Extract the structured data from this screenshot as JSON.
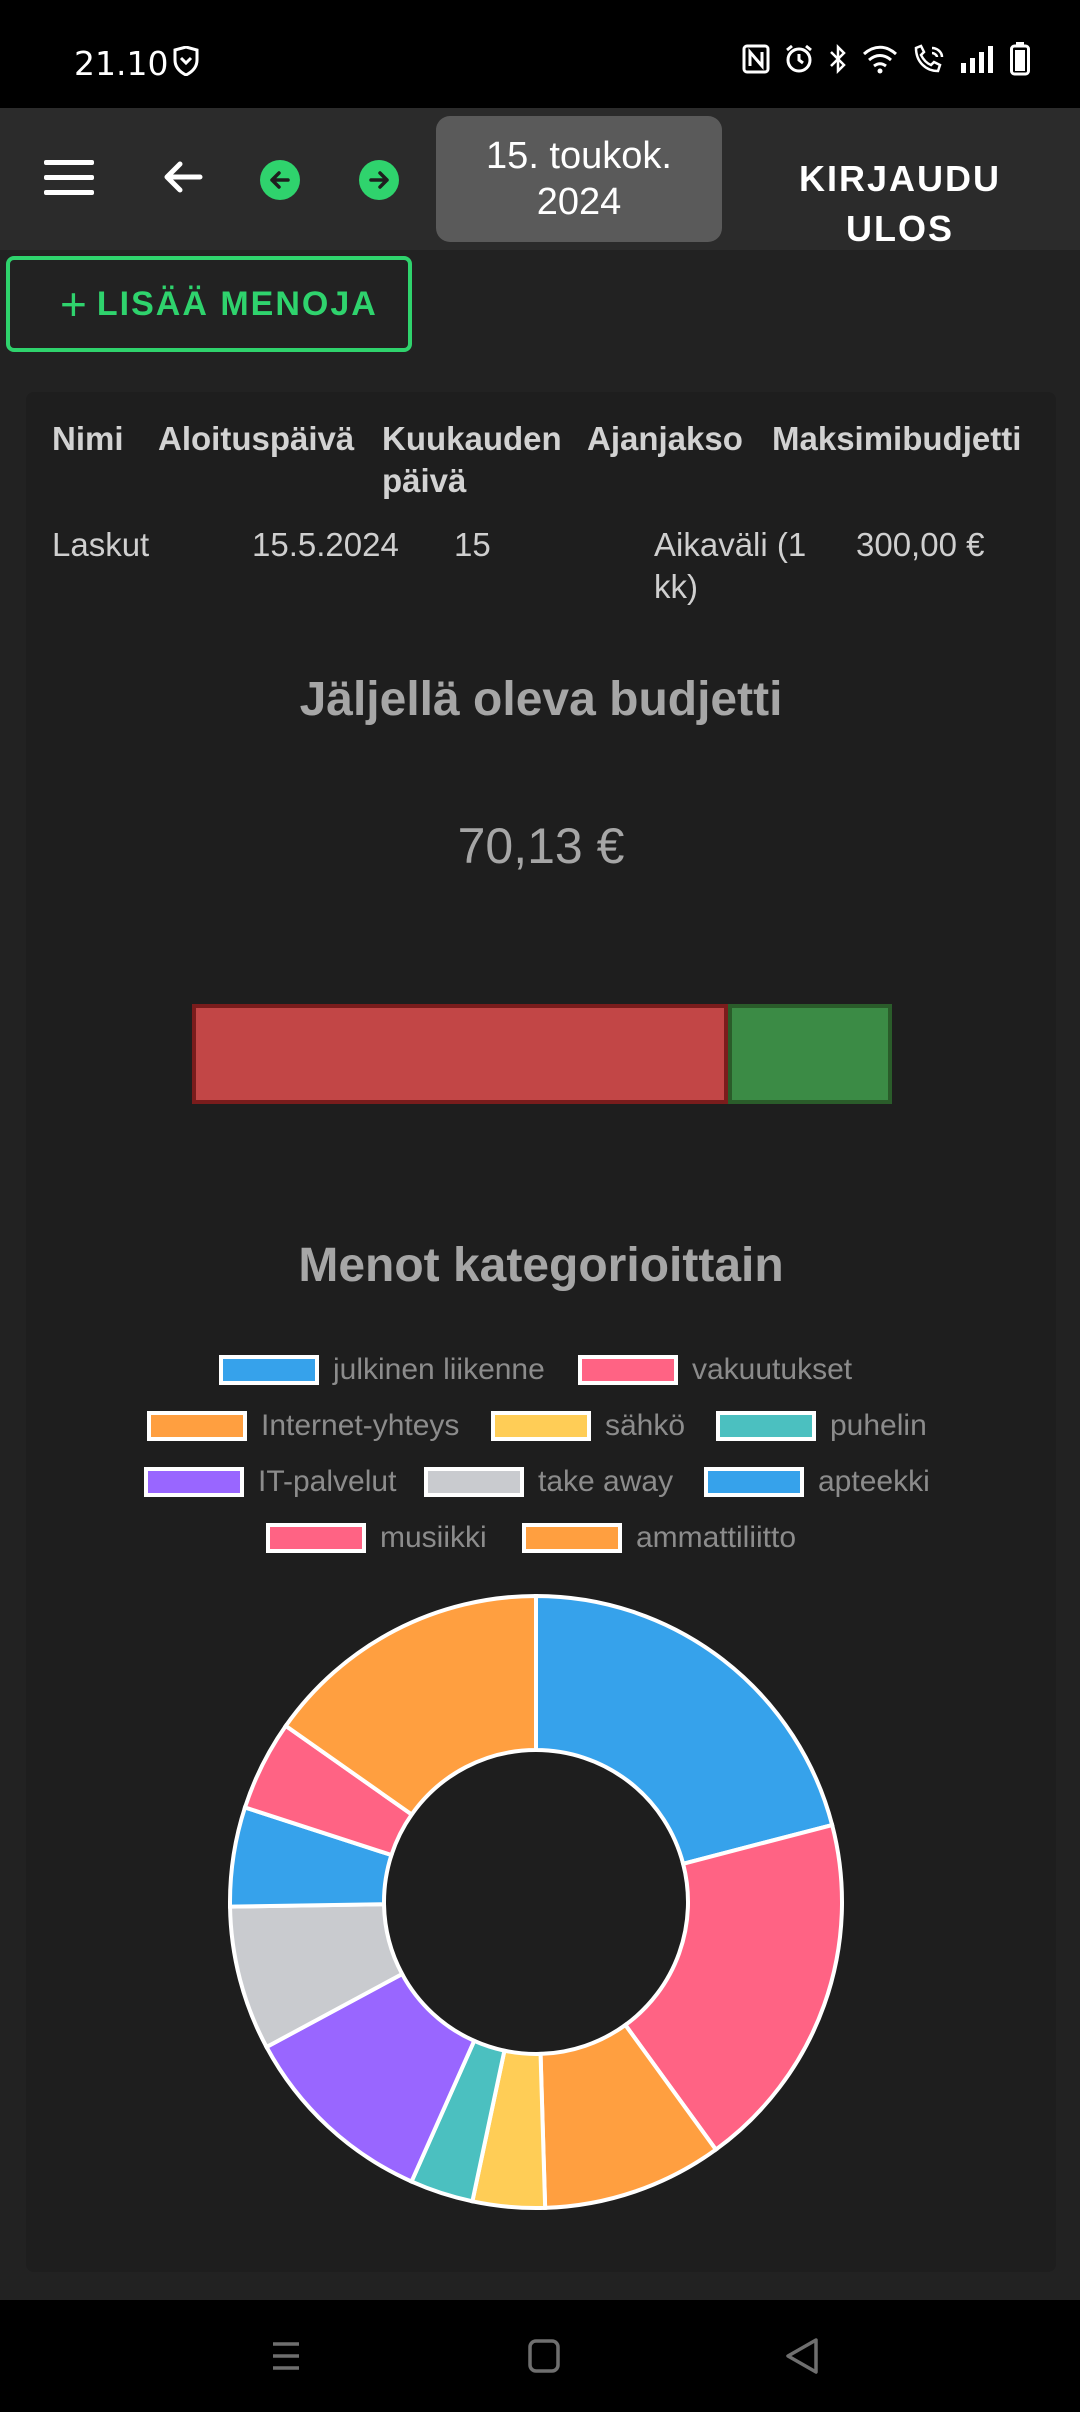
{
  "status_bar": {
    "time": "21.10",
    "icons": [
      "shield-icon",
      "nfc-icon",
      "alarm-icon",
      "bluetooth-icon",
      "wifi-icon",
      "wifi-call-icon",
      "signal-icon",
      "battery-icon"
    ]
  },
  "app_bar": {
    "menu_icon": "hamburger-icon",
    "back_icon": "arrow-left-icon",
    "prev_icon": "arrow-left-circle-icon",
    "next_icon": "arrow-right-circle-icon",
    "date_line1": "15. toukok.",
    "date_line2": "2024",
    "logout_label": "KIRJAUDU ULOS"
  },
  "add_button": {
    "icon": "plus-icon",
    "label": "LISÄÄ MENOJA"
  },
  "table": {
    "headers": [
      "Nimi",
      "Aloituspäivä",
      "Kuukauden päivä",
      "Ajanjakso",
      "Maksimibudjetti"
    ],
    "header_lines": {
      "kuukauden_1": "Kuukauden",
      "kuukauden_2": "päivä"
    },
    "row": {
      "name": "Laskut",
      "start_date": "15.5.2024",
      "day_of_month": "15",
      "period_line1": "Aikaväli (1",
      "period_line2": "kk)",
      "max_budget": "300,00 €"
    }
  },
  "budget": {
    "title": "Jäljellä oleva budjetti",
    "amount": "70,13 €",
    "used_fraction": 0.7662,
    "colors": {
      "used": "#c24646",
      "remaining": "#3b8b45"
    }
  },
  "category_chart": {
    "title": "Menot kategorioittain"
  },
  "chart_data": {
    "type": "pie",
    "variant": "doughnut",
    "title": "Menot kategorioittain",
    "legend_placement": "top",
    "categories": [
      "julkinen liikenne",
      "vakuutukset",
      "Internet-yhteys",
      "sähkö",
      "puhelin",
      "IT-palvelut",
      "take away",
      "apteekki",
      "musiikki",
      "ammattiliitto"
    ],
    "values": [
      22,
      20,
      10,
      4,
      3.5,
      11,
      8,
      5.5,
      5,
      16
    ],
    "colors": [
      "#36a2eb",
      "#ff6384",
      "#ff9f40",
      "#ffcd56",
      "#4bc0c0",
      "#9966ff",
      "#c9cbcf",
      "#36a2eb",
      "#ff6384",
      "#ff9f40"
    ]
  },
  "nav_bar": {
    "icons": [
      "recent-apps-icon",
      "home-icon",
      "back-triangle-icon"
    ]
  }
}
